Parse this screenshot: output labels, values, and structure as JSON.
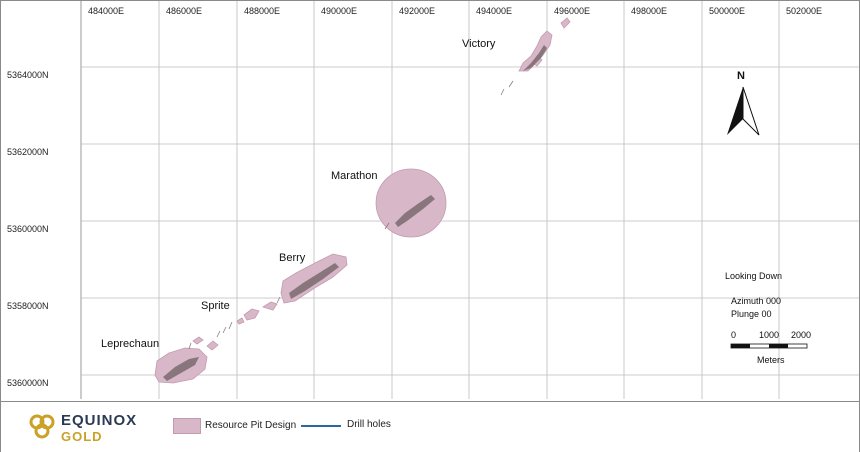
{
  "map": {
    "easting_labels": [
      "484000E",
      "486000E",
      "488000E",
      "490000E",
      "492000E",
      "494000E",
      "496000E",
      "498000E",
      "500000E",
      "502000E"
    ],
    "northing_labels": [
      "5364000N",
      "5362000N",
      "5360000N",
      "5358000N",
      "5360000N"
    ],
    "deposits": [
      "Victory",
      "Marathon",
      "Berry",
      "Sprite",
      "Leprechaun"
    ],
    "north_arrow_label": "N",
    "view": {
      "looking": "Looking Down",
      "azimuth": "Azimuth 000",
      "plunge": "Plunge 00"
    },
    "scale_bar": {
      "ticks": [
        "0",
        "1000",
        "2000"
      ],
      "unit": "Meters"
    }
  },
  "legend": {
    "pit_label": "Resource Pit Design",
    "drill_label": "Drill holes",
    "pit_color": "#d8b8c8",
    "drill_color": "#2a6a9a"
  },
  "logo": {
    "line1": "EQUINOX",
    "line2": "GOLD"
  }
}
